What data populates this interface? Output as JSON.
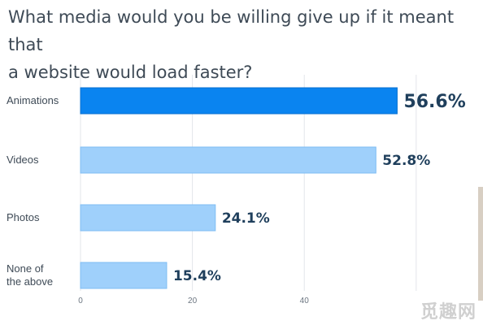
{
  "chart_data": {
    "type": "bar",
    "orientation": "horizontal",
    "title_lines": [
      "What media would you be willing give up if it meant that",
      "a website would load faster?"
    ],
    "categories": [
      [
        "Animations"
      ],
      [
        "Videos"
      ],
      [
        "Photos"
      ],
      [
        "None of",
        "the above"
      ]
    ],
    "values": [
      56.6,
      52.8,
      24.1,
      15.4
    ],
    "value_labels": [
      "56.6%",
      "52.8%",
      "24.1%",
      "15.4%"
    ],
    "highlight_index": 0,
    "xlim": [
      0,
      67
    ],
    "ticks": [
      0,
      20,
      40
    ],
    "tick_labels": [
      "0",
      "20",
      "40"
    ],
    "grid": true,
    "xlabel": "",
    "ylabel": "",
    "colors": {
      "highlight": "#0a84f0",
      "highlight_stroke": "#0870d0",
      "bar": "#9fd0fb",
      "bar_stroke": "#7fbdf3",
      "value_text": "#1f3f5c",
      "title_text": "#3e4a56"
    }
  },
  "watermark": "觅趣网"
}
